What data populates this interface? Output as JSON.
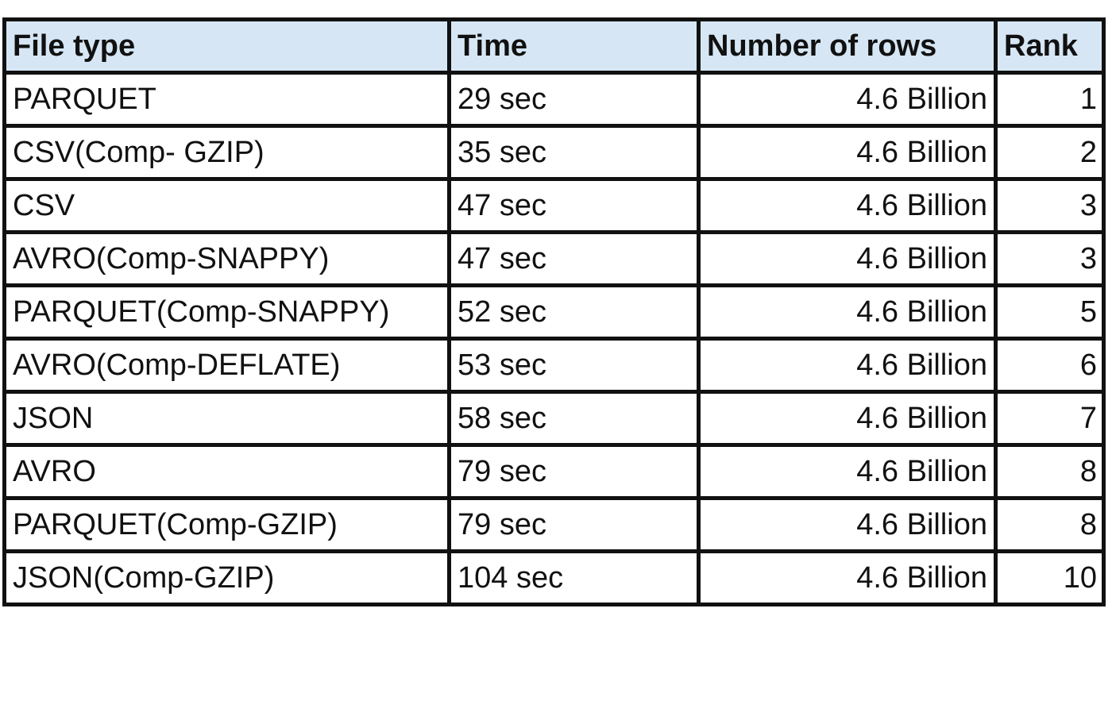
{
  "table": {
    "headers": [
      "File type",
      "Time",
      "Number of rows",
      "Rank"
    ],
    "rows": [
      [
        "PARQUET",
        "29 sec",
        "4.6 Billion",
        "1"
      ],
      [
        "CSV(Comp- GZIP)",
        "35 sec",
        "4.6 Billion",
        "2"
      ],
      [
        "CSV",
        "47 sec",
        "4.6 Billion",
        "3"
      ],
      [
        "AVRO(Comp-SNAPPY)",
        "47 sec",
        "4.6 Billion",
        "3"
      ],
      [
        "PARQUET(Comp-SNAPPY)",
        "52 sec",
        "4.6 Billion",
        "5"
      ],
      [
        "AVRO(Comp-DEFLATE)",
        "53 sec",
        "4.6 Billion",
        "6"
      ],
      [
        "JSON",
        "58 sec",
        "4.6 Billion",
        "7"
      ],
      [
        "AVRO",
        "79 sec",
        "4.6 Billion",
        "8"
      ],
      [
        "PARQUET(Comp-GZIP)",
        "79 sec",
        "4.6 Billion",
        "8"
      ],
      [
        "JSON(Comp-GZIP)",
        "104 sec",
        "4.6 Billion",
        "10"
      ]
    ]
  },
  "colors": {
    "header_background": "#d6e6f4",
    "border": "#111111"
  }
}
